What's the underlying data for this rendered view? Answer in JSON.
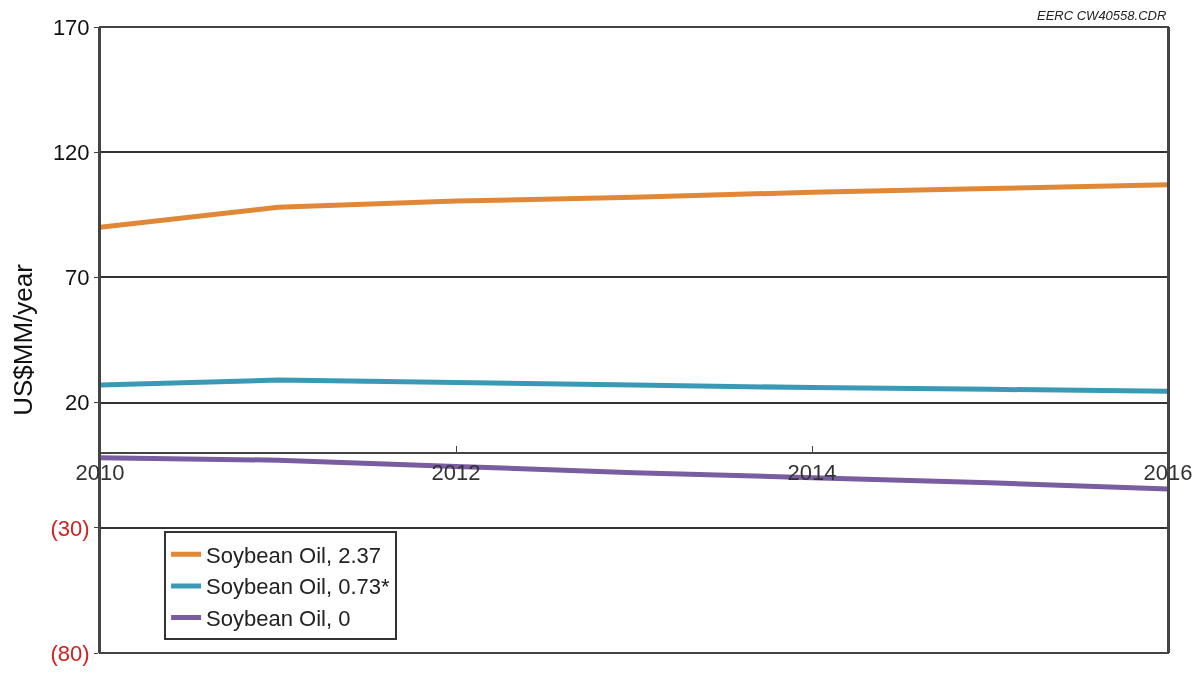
{
  "chart_data": {
    "type": "line",
    "ylabel": "US$MM/year",
    "annotations": [
      "EERC CW40558.CDR"
    ],
    "x": [
      2010,
      2011,
      2012,
      2013,
      2014,
      2015,
      2016
    ],
    "series": [
      {
        "name": "Soybean Oil, 2.37",
        "color": "#e08838",
        "values": [
          90,
          98,
          100.5,
          102,
          104,
          105.5,
          107
        ]
      },
      {
        "name": "Soybean Oil, 0.73*",
        "color": "#3a9ab5",
        "values": [
          27,
          29,
          28,
          27,
          26,
          25.3,
          24.5
        ]
      },
      {
        "name": "Soybean Oil, 0",
        "color": "#7a5ca0",
        "values": [
          -2,
          -3,
          -5.5,
          -8,
          -10,
          -12,
          -14.5
        ]
      }
    ],
    "xlim": [
      2010,
      2016
    ],
    "xticks": [
      2010,
      2012,
      2014,
      2016
    ],
    "ylim": [
      -80,
      170
    ],
    "yticks": [
      {
        "value": -80,
        "label": "(80)"
      },
      {
        "value": -30,
        "label": "(30)"
      },
      20,
      70,
      120,
      170
    ],
    "grid": "y",
    "legend": "bottom left",
    "marker": "none",
    "line_style": "solid"
  }
}
